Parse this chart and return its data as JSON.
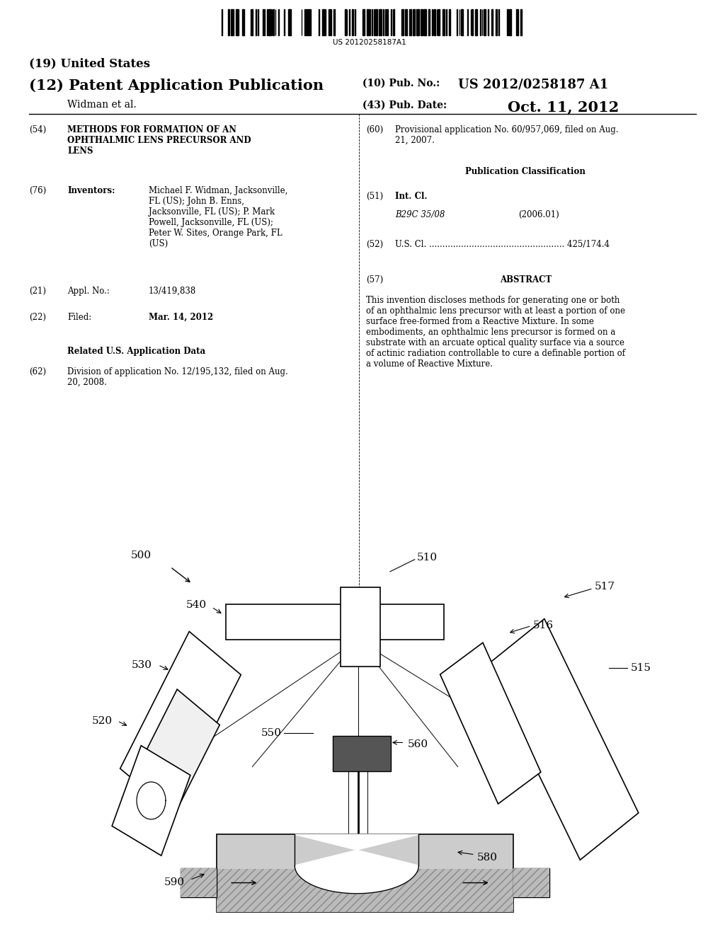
{
  "bg_color": "#ffffff",
  "barcode_text": "US 20120258187A1",
  "title_19": "(19) United States",
  "title_12": "(12) Patent Application Publication",
  "pub_no_label": "(10) Pub. No.:",
  "pub_no": "US 2012/0258187 A1",
  "inventor_label": "Widman et al.",
  "pub_date_label": "(43) Pub. Date:",
  "pub_date": "Oct. 11, 2012",
  "field54_label": "(54)",
  "field54_title": "METHODS FOR FORMATION OF AN\nOPHTHALMIC LENS PRECURSOR AND\nLENS",
  "field60_label": "(60)",
  "field60_text": "Provisional application No. 60/957,069, filed on Aug.\n21, 2007.",
  "field76_label": "(76)",
  "field76_title": "Inventors:",
  "field76_text": "Michael F. Widman, Jacksonville,\nFL (US); John B. Enns,\nJacksonville, FL (US); P. Mark\nPowell, Jacksonville, FL (US);\nPeter W. Sites, Orange Park, FL\n(US)",
  "pub_class_title": "Publication Classification",
  "field51_label": "(51)",
  "field51_title": "Int. Cl.",
  "field51_class": "B29C 35/08",
  "field51_year": "(2006.01)",
  "field52_label": "(52)",
  "field52_text": "U.S. Cl. ................................................... 425/174.4",
  "field21_label": "(21)",
  "field21_title": "Appl. No.:",
  "field21_text": "13/419,838",
  "field22_label": "(22)",
  "field22_title": "Filed:",
  "field22_text": "Mar. 14, 2012",
  "related_title": "Related U.S. Application Data",
  "field62_label": "(62)",
  "field62_text": "Division of application No. 12/195,132, filed on Aug.\n20, 2008.",
  "field57_label": "(57)",
  "field57_title": "ABSTRACT",
  "field57_text": "This invention discloses methods for generating one or both\nof an ophthalmic lens precursor with at least a portion of one\nsurface free-formed from a Reactive Mixture. In some\nembodiments, an ophthalmic lens precursor is formed on a\nsubstrate with an arcuate optical quality surface via a source\nof actinic radiation controllable to cure a definable portion of\na volume of Reactive Mixture."
}
